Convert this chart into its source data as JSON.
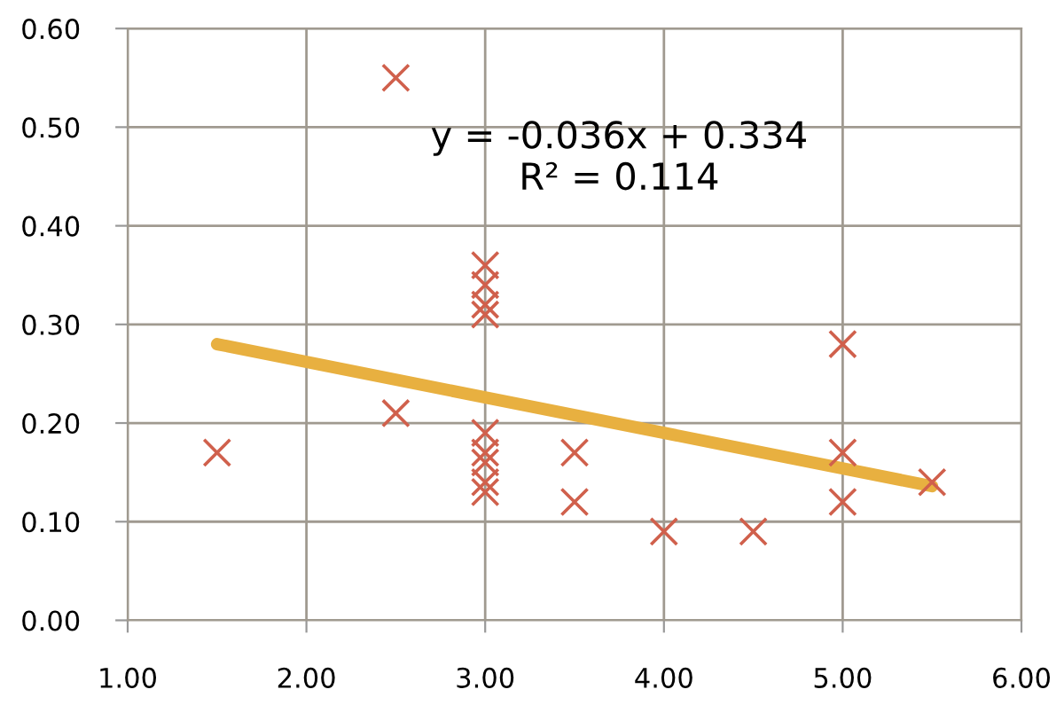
{
  "chart_data": {
    "type": "scatter",
    "series": [
      {
        "color": "#d0604c",
        "marker": "cross",
        "x": [
          1.5,
          2.5,
          2.5,
          3,
          3,
          3,
          3,
          3,
          3,
          3,
          3,
          3,
          3.5,
          3.5,
          4,
          4.5,
          5,
          5,
          5,
          5.5
        ],
        "values": [
          0.17,
          0.55,
          0.21,
          0.36,
          0.34,
          0.32,
          0.31,
          0.19,
          0.17,
          0.16,
          0.14,
          0.13,
          0.17,
          0.12,
          0.09,
          0.09,
          0.28,
          0.17,
          0.12,
          0.14
        ]
      },
      {
        "type": "line",
        "color": "#e8b040",
        "marker": "none",
        "x": [
          1.5,
          5.5
        ],
        "values": [
          0.28,
          0.136
        ]
      }
    ],
    "annotations": [
      "y = -0.036x + 0.334\nR² = 0.114"
    ],
    "xlim": [
      1,
      6
    ],
    "xticks": [
      {
        "value": 1,
        "label": "1.00"
      },
      {
        "value": 2,
        "label": "2.00"
      },
      {
        "value": 3,
        "label": "3.00"
      },
      {
        "value": 4,
        "label": "4.00"
      },
      {
        "value": 5,
        "label": "5.00"
      },
      {
        "value": 6,
        "label": "6.00"
      }
    ],
    "ylim": [
      0,
      0.6
    ],
    "yticks": [
      {
        "value": 0,
        "label": "0.00"
      },
      {
        "value": 0.1,
        "label": "0.10"
      },
      {
        "value": 0.2,
        "label": "0.20"
      },
      {
        "value": 0.3,
        "label": "0.30"
      },
      {
        "value": 0.4,
        "label": "0.40"
      },
      {
        "value": 0.5,
        "label": "0.50"
      },
      {
        "value": 0.6,
        "label": "0.60"
      }
    ],
    "grid": true
  }
}
